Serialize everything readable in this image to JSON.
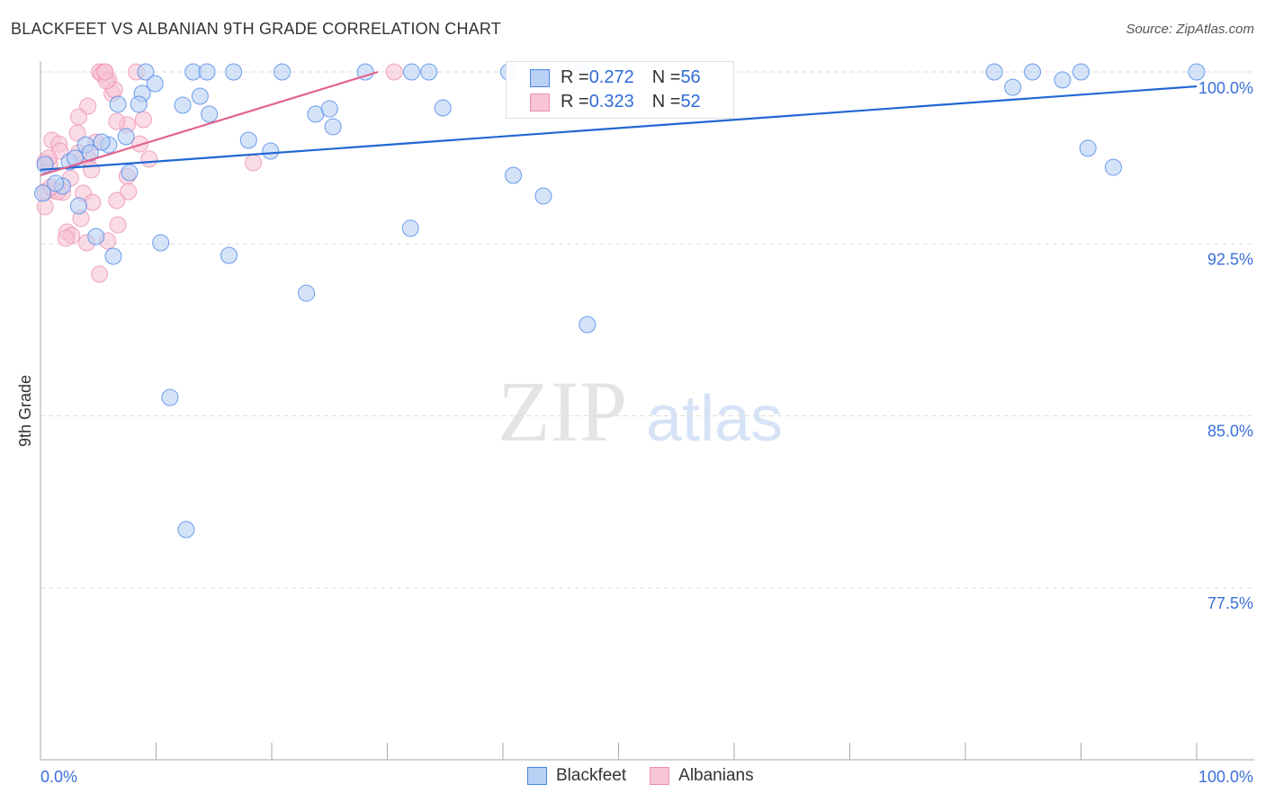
{
  "title": "BLACKFEET VS ALBANIAN 9TH GRADE CORRELATION CHART",
  "source": "Source: ZipAtlas.com",
  "watermark": "ZIPatlas",
  "legend": {
    "rows": [
      {
        "r_label": "R = ",
        "r": "0.272",
        "n_label": "N = ",
        "n": "56"
      },
      {
        "r_label": "R = ",
        "r": "0.323",
        "n_label": "N = ",
        "n": "52"
      }
    ],
    "bottom": [
      "Blackfeet",
      "Albanians"
    ]
  },
  "colors": {
    "blue": "#4a86e8",
    "blue_fill": "#b9d1f4",
    "blue_line": "#2167d4",
    "pink": "#ee8fae",
    "pink_fill": "#f7c5d6",
    "pink_line": "#e2628e"
  },
  "chart_data": {
    "type": "scatter",
    "title": "BLACKFEET VS ALBANIAN 9TH GRADE CORRELATION CHART",
    "xlabel": "",
    "ylabel": "9th Grade",
    "xlim": [
      0,
      100
    ],
    "ylim": [
      70,
      100.8
    ],
    "x_tick_labels": [
      "0.0%",
      "100.0%"
    ],
    "y_ticks": [
      100,
      92.5,
      85,
      77.5
    ],
    "y_tick_labels": [
      "100.0%",
      "92.5%",
      "85.0%",
      "77.5%"
    ],
    "grid": true,
    "legend_position": "top-center",
    "series": [
      {
        "name": "Blackfeet",
        "trend": [
          [
            0,
            95.73
          ],
          [
            100,
            99.37
          ]
        ],
        "points": [
          [
            9.1,
            100
          ],
          [
            13.2,
            100
          ],
          [
            14.4,
            100
          ],
          [
            16.7,
            100
          ],
          [
            20.9,
            100
          ],
          [
            28.1,
            100
          ],
          [
            32.1,
            100
          ],
          [
            33.6,
            100
          ],
          [
            40.5,
            100
          ],
          [
            46.7,
            100
          ],
          [
            82.5,
            100
          ],
          [
            85.8,
            100
          ],
          [
            90.0,
            100
          ],
          [
            100,
            100
          ],
          [
            9.9,
            99.49
          ],
          [
            8.8,
            99.06
          ],
          [
            13.8,
            98.94
          ],
          [
            6.7,
            98.59
          ],
          [
            8.5,
            98.59
          ],
          [
            12.3,
            98.55
          ],
          [
            14.6,
            98.16
          ],
          [
            23.8,
            98.16
          ],
          [
            25.0,
            98.39
          ],
          [
            25.3,
            97.61
          ],
          [
            34.8,
            98.43
          ],
          [
            84.1,
            99.33
          ],
          [
            88.4,
            99.65
          ],
          [
            7.4,
            97.18
          ],
          [
            18.0,
            97.02
          ],
          [
            19.9,
            96.55
          ],
          [
            5.9,
            96.82
          ],
          [
            3.9,
            96.82
          ],
          [
            4.3,
            96.47
          ],
          [
            2.5,
            96.08
          ],
          [
            0.4,
            95.96
          ],
          [
            7.7,
            95.61
          ],
          [
            40.9,
            95.49
          ],
          [
            43.5,
            94.59
          ],
          [
            90.6,
            96.67
          ],
          [
            92.8,
            95.84
          ],
          [
            1.9,
            95.02
          ],
          [
            1.3,
            95.14
          ],
          [
            3.3,
            94.16
          ],
          [
            0.2,
            94.71
          ],
          [
            4.8,
            92.82
          ],
          [
            10.4,
            92.55
          ],
          [
            6.3,
            91.96
          ],
          [
            16.3,
            92.0
          ],
          [
            32.0,
            93.18
          ],
          [
            23.0,
            90.35
          ],
          [
            47.3,
            88.98
          ],
          [
            11.2,
            85.8
          ],
          [
            12.6,
            80.04
          ],
          [
            3.0,
            96.24
          ],
          [
            5.3,
            96.94
          ]
        ]
      },
      {
        "name": "Albanians",
        "trend": [
          [
            0,
            95.49
          ],
          [
            29.2,
            100
          ]
        ],
        "points": [
          [
            5.1,
            100
          ],
          [
            5.5,
            100
          ],
          [
            8.3,
            100
          ],
          [
            30.6,
            100
          ],
          [
            5.3,
            99.92
          ],
          [
            5.9,
            99.65
          ],
          [
            6.2,
            99.06
          ],
          [
            6.4,
            99.22
          ],
          [
            4.1,
            98.51
          ],
          [
            3.3,
            98.04
          ],
          [
            7.5,
            97.69
          ],
          [
            8.9,
            97.92
          ],
          [
            1.0,
            97.02
          ],
          [
            1.6,
            96.86
          ],
          [
            3.2,
            97.33
          ],
          [
            1.7,
            96.55
          ],
          [
            4.8,
            96.94
          ],
          [
            8.6,
            96.86
          ],
          [
            4.1,
            96.24
          ],
          [
            9.4,
            96.2
          ],
          [
            18.4,
            96.04
          ],
          [
            0.4,
            96.08
          ],
          [
            0.8,
            95.96
          ],
          [
            0.7,
            96.24
          ],
          [
            4.4,
            95.73
          ],
          [
            2.6,
            95.37
          ],
          [
            7.5,
            95.45
          ],
          [
            7.6,
            94.78
          ],
          [
            6.6,
            94.39
          ],
          [
            0.4,
            94.78
          ],
          [
            1.2,
            94.82
          ],
          [
            1.9,
            94.75
          ],
          [
            3.7,
            94.71
          ],
          [
            4.5,
            94.31
          ],
          [
            0.4,
            94.12
          ],
          [
            1.5,
            94.78
          ],
          [
            3.5,
            93.61
          ],
          [
            6.7,
            93.33
          ],
          [
            2.3,
            93.02
          ],
          [
            2.7,
            92.86
          ],
          [
            2.2,
            92.75
          ],
          [
            4.0,
            92.55
          ],
          [
            5.8,
            92.63
          ],
          [
            5.1,
            91.18
          ],
          [
            5.7,
            99.61
          ],
          [
            0.9,
            94.98
          ],
          [
            3.3,
            96.47
          ],
          [
            6.6,
            97.84
          ],
          [
            5.6,
            100
          ]
        ]
      }
    ]
  }
}
